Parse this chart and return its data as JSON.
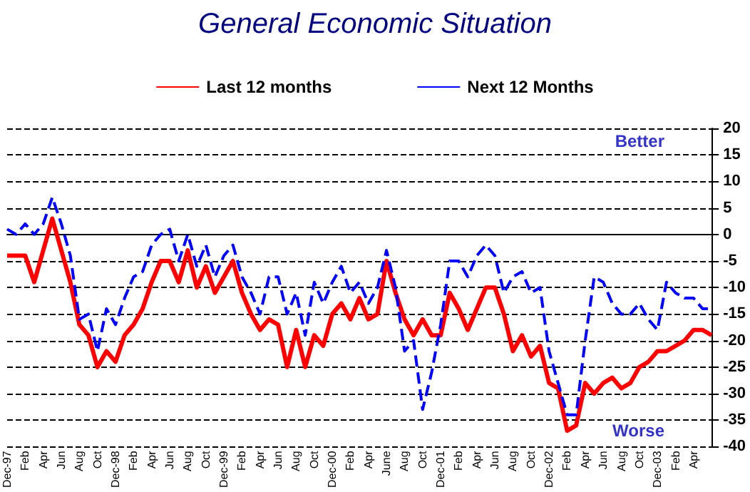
{
  "chart_data": {
    "type": "line",
    "title": "General Economic Situation",
    "categories": [
      "Dec-97",
      null,
      "Feb",
      null,
      "Apr",
      null,
      "Jun",
      null,
      "Aug",
      null,
      "Oct",
      null,
      "Dec-98",
      null,
      "Feb",
      null,
      "Apr",
      null,
      "Jun",
      null,
      "Aug",
      null,
      "Oct",
      null,
      "Dec-99",
      null,
      "Feb",
      null,
      "Apr",
      null,
      "Jun",
      null,
      "Aug",
      null,
      "Oct",
      null,
      "Dec-00",
      null,
      "Feb",
      null,
      "Apr",
      null,
      "June",
      null,
      "Aug",
      null,
      "Oct",
      null,
      "Dec-01",
      null,
      "Feb",
      null,
      "Apr",
      null,
      "Jun",
      null,
      "Aug",
      null,
      "Oct",
      null,
      "Dec-02",
      null,
      "Feb",
      null,
      "Apr",
      null,
      "Jun",
      null,
      "Aug",
      null,
      "Oct",
      null,
      "Dec-03",
      null,
      "Feb",
      null,
      "Apr",
      null,
      null
    ],
    "series": [
      {
        "name": "Last 12 months",
        "color": "#ff0000",
        "line_style": "solid",
        "values": [
          -4,
          -4,
          -4,
          -9,
          -3,
          3,
          -3,
          -9,
          -17,
          -19,
          -25,
          -22,
          -24,
          -19,
          -17,
          -14,
          -9,
          -5,
          -5,
          -9,
          -3,
          -10,
          -6,
          -11,
          -8,
          -5,
          -11,
          -15,
          -18,
          -16,
          -17,
          -25,
          -18,
          -25,
          -19,
          -21,
          -15,
          -13,
          -16,
          -12,
          -16,
          -15,
          -5,
          -11,
          -16,
          -19,
          -16,
          -19,
          -19,
          -11,
          -14,
          -18,
          -14,
          -10,
          -10,
          -15,
          -22,
          -19,
          -23,
          -21,
          -28,
          -29,
          -37,
          -36,
          -28,
          -30,
          -28,
          -27,
          -29,
          -28,
          -25,
          -24,
          -22,
          -22,
          -21,
          -20,
          -18,
          -18,
          -19
        ]
      },
      {
        "name": "Next 12 Months",
        "color": "#0000ff",
        "line_style": "dashed",
        "values": [
          1,
          0,
          2,
          0,
          2,
          7,
          2,
          -4,
          -16,
          -15,
          -22,
          -14,
          -17,
          -12,
          -8,
          -7,
          -2,
          0,
          1,
          -5,
          0,
          -6,
          -2,
          -8,
          -4,
          -2,
          -8,
          -11,
          -15,
          -8,
          -8,
          -15,
          -11,
          -19,
          -9,
          -13,
          -9,
          -6,
          -11,
          -9,
          -13,
          -10,
          -3,
          -10,
          -22,
          -20,
          -33,
          -26,
          -17,
          -5,
          -5,
          -8,
          -4,
          -2,
          -4,
          -11,
          -8,
          -7,
          -11,
          -10,
          -22,
          -28,
          -34,
          -34,
          -20,
          -8,
          -9,
          -13,
          -15,
          -15,
          -13,
          -16,
          -18,
          -9,
          -11,
          -12,
          -12,
          -14,
          -14
        ]
      }
    ],
    "ylim": [
      -40,
      20
    ],
    "yticks": [
      -40,
      -35,
      -30,
      -25,
      -20,
      -15,
      -10,
      -5,
      0,
      5,
      10,
      15,
      20
    ],
    "grid": "y",
    "legend": "top",
    "marker": "none",
    "annotations": [
      "Better",
      "Worse"
    ]
  }
}
